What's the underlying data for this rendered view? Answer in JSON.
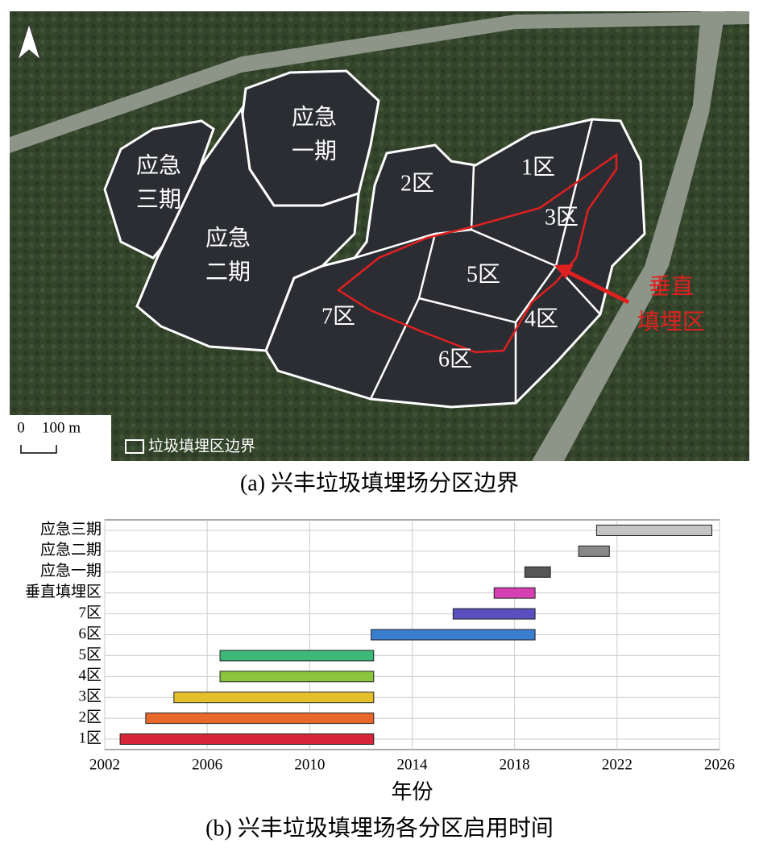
{
  "map": {
    "zones": [
      [
        "应急",
        "一期"
      ],
      [
        "应急",
        "三期"
      ],
      [
        "应急",
        "二期"
      ],
      [
        "1区"
      ],
      [
        "2区"
      ],
      [
        "3区"
      ],
      [
        "4区"
      ],
      [
        "5区"
      ],
      [
        "6区"
      ],
      [
        "7区"
      ]
    ],
    "vertical_zone": [
      "垂直",
      "填埋区"
    ],
    "scale": [
      "0",
      "100 m"
    ],
    "legend": "垃圾填埋区边界",
    "caption": "(a) 兴丰垃圾填埋场分区边界"
  },
  "chart_data": {
    "type": "gantt",
    "title": "(b) 兴丰垃圾填埋场各分区启用时间",
    "x_label": "年份",
    "categories": [
      "1区",
      "2区",
      "3区",
      "4区",
      "5区",
      "6区",
      "7区",
      "垂直填埋区",
      "应急一期",
      "应急二期",
      "应急三期"
    ],
    "starts": [
      2002.6,
      2003.6,
      2004.7,
      2006.5,
      2006.5,
      2012.4,
      2015.6,
      2017.2,
      2018.4,
      2020.5,
      2021.2
    ],
    "ends": [
      2012.5,
      2012.5,
      2012.5,
      2012.5,
      2012.5,
      2018.8,
      2018.8,
      2018.8,
      2019.4,
      2021.7,
      2025.7
    ],
    "colors": [
      "#d7263a",
      "#e8672a",
      "#e4c02c",
      "#8cc63f",
      "#3cb878",
      "#3a7fcf",
      "#5a4fbf",
      "#d63fb0",
      "#555555",
      "#888888",
      "#c4c4c4"
    ],
    "xlim": [
      2002,
      2026
    ],
    "xticks": [
      2002,
      2006,
      2010,
      2014,
      2018,
      2022,
      2026
    ],
    "grid": true
  }
}
